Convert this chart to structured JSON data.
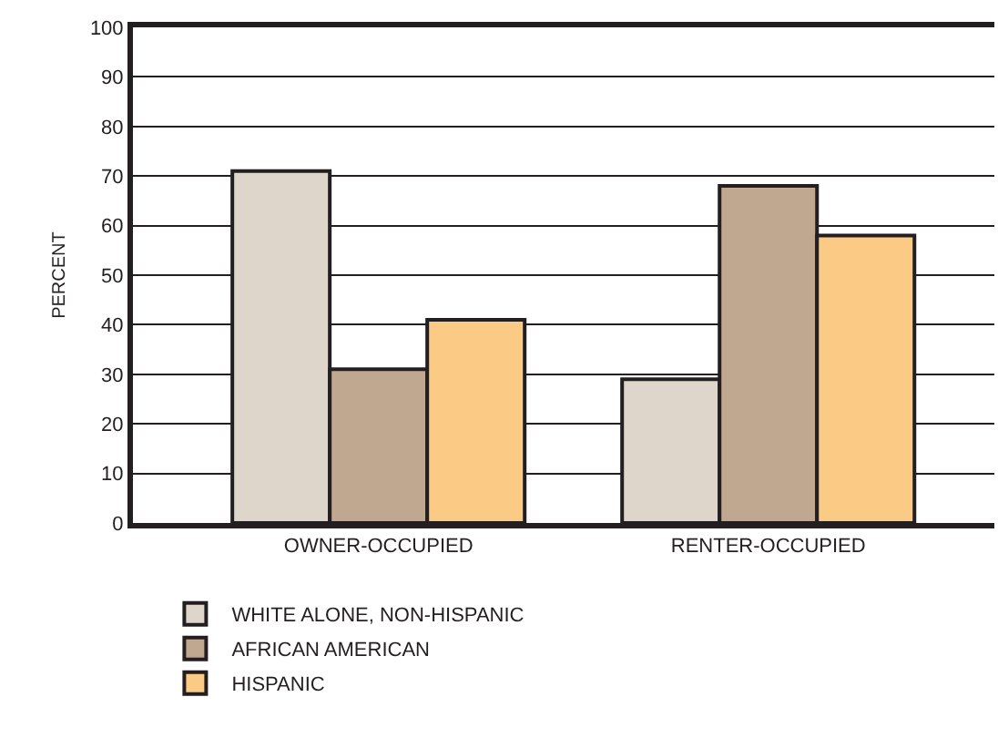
{
  "chart_data": {
    "type": "bar",
    "ylabel": "PERCENT",
    "categories": [
      "OWNER-OCCUPIED",
      "RENTER-OCCUPIED"
    ],
    "series": [
      {
        "name": "WHITE ALONE, NON-HISPANIC",
        "color": "#dfd6cb",
        "values": [
          71,
          29
        ]
      },
      {
        "name": "AFRICAN AMERICAN",
        "color": "#c0a790",
        "values": [
          31,
          68
        ]
      },
      {
        "name": "HISPANIC",
        "color": "#fbcb85",
        "values": [
          41,
          58
        ]
      }
    ],
    "ylim": [
      0,
      100
    ],
    "yticks": [
      0,
      10,
      20,
      30,
      40,
      50,
      60,
      70,
      80,
      90,
      100
    ],
    "grid": "y",
    "legend": "bottom left"
  }
}
